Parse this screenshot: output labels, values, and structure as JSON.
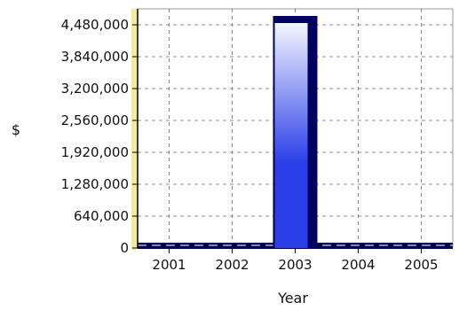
{
  "chart_data": {
    "type": "bar",
    "categories": [
      "2001",
      "2002",
      "2003",
      "2004",
      "2005"
    ],
    "values": [
      0,
      0,
      4480000,
      0,
      0
    ],
    "xlabel": "Year",
    "ylabel": "$",
    "ylim": [
      0,
      4480000
    ],
    "yticks": [
      0,
      640000,
      1280000,
      1920000,
      2560000,
      3200000,
      3840000,
      4480000
    ],
    "ytick_labels": [
      "0",
      "640,000",
      "1,280,000",
      "1,920,000",
      "2,560,000",
      "3,200,000",
      "3,840,000",
      "4,480,000"
    ],
    "grid": true,
    "legend": "none",
    "colors": {
      "bar_dark": "#000060",
      "bar_mid": "#2b3fe8",
      "bar_light": "#f4f6ff",
      "baseline": "#000050",
      "wall": "#f3eca0"
    }
  }
}
